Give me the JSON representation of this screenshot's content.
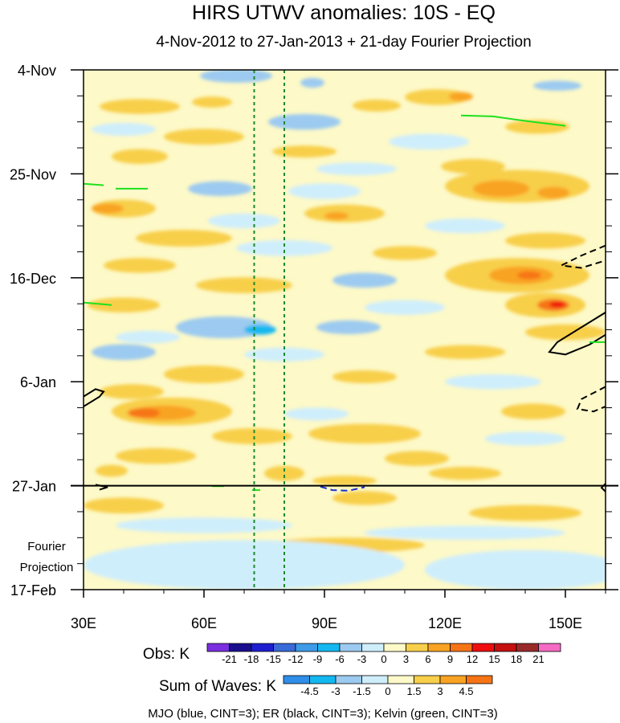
{
  "chart_data": {
    "type": "heatmap",
    "title": "HIRS UTWV anomalies: 10S - EQ",
    "subtitle": "4-Nov-2012 to 27-Jan-2013 + 21-day Fourier Projection",
    "x_axis": {
      "range": [
        30,
        160
      ],
      "ticks": [
        {
          "value": 30,
          "label": "30E"
        },
        {
          "value": 60,
          "label": "60E"
        },
        {
          "value": 90,
          "label": "90E"
        },
        {
          "value": 120,
          "label": "120E"
        },
        {
          "value": 150,
          "label": "150E"
        }
      ]
    },
    "y_axis": {
      "range_days": [
        0,
        105
      ],
      "ticks": [
        {
          "day": 0,
          "label": "4-Nov"
        },
        {
          "day": 21,
          "label": "25-Nov"
        },
        {
          "day": 42,
          "label": "16-Dec"
        },
        {
          "day": 63,
          "label": "6-Jan"
        },
        {
          "day": 84,
          "label": "27-Jan"
        },
        {
          "day": 105,
          "label": "17-Feb"
        }
      ]
    },
    "projection_label": [
      "Fourier",
      "Projection"
    ],
    "projection_start_day": 84,
    "reference_longitudes": [
      72.5,
      80
    ],
    "obs_colorbar": {
      "label": "Obs: K",
      "levels": [
        "-21",
        "-18",
        "-15",
        "-12",
        "-9",
        "-6",
        "-3",
        "0",
        "3",
        "6",
        "9",
        "12",
        "15",
        "18",
        "21"
      ],
      "colors": [
        "#7a2fe0",
        "#1b0f8f",
        "#1e1ed0",
        "#3a6ad8",
        "#3d9be8",
        "#14b8f0",
        "#9ccaf0",
        "#cfeefc",
        "#fdf9c8",
        "#f8cf4a",
        "#f9a324",
        "#f77416",
        "#ef0e0e",
        "#c41010",
        "#9a2a2a",
        "#f56bc4"
      ]
    },
    "waves_colorbar": {
      "label": "Sum of Waves: K",
      "levels": [
        "-4.5",
        "-3",
        "-1.5",
        "0",
        "1.5",
        "3",
        "4.5"
      ],
      "colors": [
        "#2f8ee8",
        "#14b8f0",
        "#9ccaf0",
        "#cfeefc",
        "#fdf9c8",
        "#f8cf4a",
        "#f9a324",
        "#f77416"
      ]
    },
    "legend": "MJO (blue, CINT=3); ER (black, CINT=3); Kelvin (green, CINT=3)",
    "patches": [
      {
        "lon": 68,
        "day": 1.2,
        "rx": 9,
        "ry": 1.4,
        "v": -6
      },
      {
        "lon": 87,
        "day": 2.6,
        "rx": 3,
        "ry": 1.0,
        "v": -6
      },
      {
        "lon": 118,
        "day": 5.5,
        "rx": 8,
        "ry": 1.6,
        "v": 4
      },
      {
        "lon": 124,
        "day": 5.4,
        "rx": 3,
        "ry": 0.9,
        "v": 7
      },
      {
        "lon": 44,
        "day": 7.4,
        "rx": 10,
        "ry": 1.5,
        "v": 3
      },
      {
        "lon": 62,
        "day": 6.5,
        "rx": 5,
        "ry": 1.1,
        "v": 4
      },
      {
        "lon": 103,
        "day": 7.2,
        "rx": 6,
        "ry": 1.2,
        "v": 3
      },
      {
        "lon": 148,
        "day": 3.2,
        "rx": 6,
        "ry": 1.0,
        "v": -4
      },
      {
        "lon": 85,
        "day": 10.5,
        "rx": 9,
        "ry": 1.6,
        "v": -4
      },
      {
        "lon": 40,
        "day": 12.0,
        "rx": 8,
        "ry": 1.3,
        "v": -3
      },
      {
        "lon": 60,
        "day": 13.5,
        "rx": 10,
        "ry": 1.6,
        "v": 3
      },
      {
        "lon": 143,
        "day": 11.5,
        "rx": 8,
        "ry": 1.4,
        "v": 3
      },
      {
        "lon": 116,
        "day": 14.5,
        "rx": 10,
        "ry": 1.6,
        "v": -3
      },
      {
        "lon": 85,
        "day": 16.5,
        "rx": 8,
        "ry": 1.2,
        "v": 3
      },
      {
        "lon": 44,
        "day": 17.5,
        "rx": 7,
        "ry": 1.5,
        "v": 3
      },
      {
        "lon": 127,
        "day": 19.5,
        "rx": 8,
        "ry": 1.5,
        "v": 3
      },
      {
        "lon": 98,
        "day": 20.0,
        "rx": 10,
        "ry": 1.3,
        "v": -3
      },
      {
        "lon": 138,
        "day": 23.5,
        "rx": 18,
        "ry": 3.3,
        "v": 4
      },
      {
        "lon": 134,
        "day": 24.0,
        "rx": 7,
        "ry": 1.7,
        "v": 7
      },
      {
        "lon": 147,
        "day": 24.8,
        "rx": 4,
        "ry": 1.2,
        "v": 7
      },
      {
        "lon": 64,
        "day": 24.0,
        "rx": 8,
        "ry": 1.5,
        "v": -4
      },
      {
        "lon": 90,
        "day": 24.5,
        "rx": 9,
        "ry": 1.6,
        "v": -3
      },
      {
        "lon": 40,
        "day": 28.0,
        "rx": 8,
        "ry": 1.8,
        "v": 4
      },
      {
        "lon": 36,
        "day": 28.0,
        "rx": 4,
        "ry": 1.0,
        "v": 8
      },
      {
        "lon": 95,
        "day": 29.0,
        "rx": 10,
        "ry": 1.8,
        "v": 4
      },
      {
        "lon": 93,
        "day": 29.5,
        "rx": 3,
        "ry": 0.8,
        "v": 7
      },
      {
        "lon": 70,
        "day": 30.5,
        "rx": 9,
        "ry": 1.5,
        "v": -3
      },
      {
        "lon": 125,
        "day": 31.5,
        "rx": 10,
        "ry": 1.5,
        "v": -3
      },
      {
        "lon": 55,
        "day": 34.0,
        "rx": 12,
        "ry": 1.7,
        "v": 3
      },
      {
        "lon": 145,
        "day": 34.5,
        "rx": 10,
        "ry": 1.6,
        "v": 3
      },
      {
        "lon": 80,
        "day": 36.0,
        "rx": 12,
        "ry": 1.6,
        "v": -3
      },
      {
        "lon": 110,
        "day": 37.0,
        "rx": 8,
        "ry": 1.4,
        "v": 3
      },
      {
        "lon": 44,
        "day": 39.5,
        "rx": 9,
        "ry": 1.5,
        "v": 3
      },
      {
        "lon": 138,
        "day": 41.5,
        "rx": 18,
        "ry": 3.5,
        "v": 4
      },
      {
        "lon": 139,
        "day": 41.5,
        "rx": 8,
        "ry": 1.8,
        "v": 7
      },
      {
        "lon": 141,
        "day": 41.5,
        "rx": 3,
        "ry": 0.8,
        "v": 10
      },
      {
        "lon": 100,
        "day": 42.5,
        "rx": 8,
        "ry": 1.5,
        "v": -4
      },
      {
        "lon": 70,
        "day": 43.5,
        "rx": 12,
        "ry": 1.6,
        "v": 3
      },
      {
        "lon": 145,
        "day": 47.5,
        "rx": 10,
        "ry": 2.5,
        "v": 5
      },
      {
        "lon": 147,
        "day": 47.5,
        "rx": 4,
        "ry": 1.2,
        "v": 10
      },
      {
        "lon": 148,
        "day": 47.4,
        "rx": 2,
        "ry": 0.6,
        "v": 13
      },
      {
        "lon": 40,
        "day": 47.5,
        "rx": 9,
        "ry": 1.5,
        "v": 3
      },
      {
        "lon": 110,
        "day": 48.0,
        "rx": 10,
        "ry": 1.5,
        "v": -3
      },
      {
        "lon": 65,
        "day": 52.0,
        "rx": 12,
        "ry": 2.2,
        "v": -4
      },
      {
        "lon": 74,
        "day": 52.5,
        "rx": 4,
        "ry": 1.0,
        "v": -7
      },
      {
        "lon": 96,
        "day": 52.0,
        "rx": 8,
        "ry": 1.4,
        "v": -4
      },
      {
        "lon": 46,
        "day": 54.0,
        "rx": 8,
        "ry": 1.3,
        "v": -3
      },
      {
        "lon": 150,
        "day": 53.0,
        "rx": 10,
        "ry": 1.6,
        "v": 3
      },
      {
        "lon": 40,
        "day": 57.0,
        "rx": 8,
        "ry": 1.6,
        "v": -4
      },
      {
        "lon": 80,
        "day": 57.5,
        "rx": 10,
        "ry": 1.4,
        "v": -3
      },
      {
        "lon": 125,
        "day": 57.0,
        "rx": 10,
        "ry": 1.4,
        "v": 3
      },
      {
        "lon": 60,
        "day": 61.5,
        "rx": 10,
        "ry": 1.8,
        "v": 3
      },
      {
        "lon": 100,
        "day": 62.0,
        "rx": 8,
        "ry": 1.3,
        "v": 3
      },
      {
        "lon": 132,
        "day": 63.0,
        "rx": 12,
        "ry": 1.5,
        "v": -3
      },
      {
        "lon": 42,
        "day": 65.0,
        "rx": 8,
        "ry": 1.5,
        "v": 3
      },
      {
        "lon": 52,
        "day": 69.0,
        "rx": 15,
        "ry": 2.8,
        "v": 4
      },
      {
        "lon": 50,
        "day": 69.3,
        "rx": 8,
        "ry": 1.5,
        "v": 7
      },
      {
        "lon": 45,
        "day": 69.3,
        "rx": 4,
        "ry": 1.0,
        "v": 10
      },
      {
        "lon": 88,
        "day": 69.5,
        "rx": 8,
        "ry": 1.3,
        "v": -3
      },
      {
        "lon": 142,
        "day": 69.0,
        "rx": 8,
        "ry": 1.6,
        "v": 3
      },
      {
        "lon": 100,
        "day": 73.5,
        "rx": 14,
        "ry": 2.0,
        "v": 4
      },
      {
        "lon": 72,
        "day": 74.0,
        "rx": 10,
        "ry": 1.6,
        "v": 3
      },
      {
        "lon": 140,
        "day": 74.5,
        "rx": 10,
        "ry": 1.4,
        "v": -3
      },
      {
        "lon": 48,
        "day": 78.0,
        "rx": 10,
        "ry": 1.6,
        "v": 3
      },
      {
        "lon": 113,
        "day": 78.5,
        "rx": 8,
        "ry": 1.5,
        "v": 3
      },
      {
        "lon": 80,
        "day": 81.5,
        "rx": 5,
        "ry": 1.5,
        "v": 4
      },
      {
        "lon": 37,
        "day": 81.0,
        "rx": 4,
        "ry": 1.2,
        "v": 4
      },
      {
        "lon": 125,
        "day": 81.5,
        "rx": 9,
        "ry": 1.3,
        "v": 3
      },
      {
        "lon": 95,
        "day": 83.0,
        "rx": 8,
        "ry": 1.0,
        "v": 3
      }
    ],
    "projection_bands": [
      {
        "lon": 40,
        "day": 88.0,
        "rx": 10,
        "ry": 1.6,
        "v": 1.6
      },
      {
        "lon": 100,
        "day": 86.5,
        "rx": 8,
        "ry": 1.4,
        "v": 1.6
      },
      {
        "lon": 140,
        "day": 89.5,
        "rx": 14,
        "ry": 1.6,
        "v": 1.6
      },
      {
        "lon": 60,
        "day": 92.0,
        "rx": 22,
        "ry": 1.6,
        "v": -0.6
      },
      {
        "lon": 125,
        "day": 93.5,
        "rx": 25,
        "ry": 1.4,
        "v": -0.6
      },
      {
        "lon": 95,
        "day": 96.0,
        "rx": 20,
        "ry": 1.5,
        "v": 1.6
      },
      {
        "lon": 70,
        "day": 100.0,
        "rx": 40,
        "ry": 5.0,
        "v": -0.6
      },
      {
        "lon": 140,
        "day": 101.0,
        "rx": 25,
        "ry": 4.0,
        "v": -0.6
      }
    ],
    "wave_contours": [
      {
        "name": "er-contour",
        "color": "#000000",
        "dashed": false,
        "points": [
          [
            30,
            68.0
          ],
          [
            34,
            66.0
          ],
          [
            35,
            65.0
          ],
          [
            33,
            64.5
          ],
          [
            30,
            66.0
          ]
        ]
      },
      {
        "name": "er-contour",
        "color": "#000000",
        "dashed": false,
        "points": [
          [
            160,
            49.0
          ],
          [
            154,
            52.0
          ],
          [
            148,
            55.0
          ],
          [
            146,
            57.0
          ],
          [
            150,
            57.5
          ],
          [
            156,
            55.5
          ],
          [
            160,
            53.5
          ]
        ]
      },
      {
        "name": "er-contour",
        "color": "#000000",
        "dashed": true,
        "points": [
          [
            160,
            35.5
          ],
          [
            154,
            37.5
          ],
          [
            149,
            39.5
          ],
          [
            154,
            40.0
          ],
          [
            160,
            38.5
          ]
        ]
      },
      {
        "name": "er-contour",
        "color": "#000000",
        "dashed": true,
        "points": [
          [
            160,
            64.0
          ],
          [
            154,
            66.5
          ],
          [
            153,
            68.5
          ],
          [
            157,
            69.0
          ],
          [
            160,
            68.0
          ]
        ]
      },
      {
        "name": "er-contour",
        "color": "#000000",
        "dashed": false,
        "points": [
          [
            33,
            83.8
          ],
          [
            36,
            84.3
          ],
          [
            34,
            84.8
          ]
        ]
      },
      {
        "name": "er-contour",
        "color": "#000000",
        "dashed": false,
        "points": [
          [
            160,
            83.6
          ],
          [
            159,
            84.4
          ],
          [
            160,
            85.2
          ]
        ]
      },
      {
        "name": "mjo-contour",
        "color": "#1a2fd0",
        "dashed": true,
        "points": [
          [
            89,
            84.2
          ],
          [
            92,
            84.9
          ],
          [
            96,
            85.0
          ],
          [
            100,
            84.3
          ]
        ]
      },
      {
        "name": "kelvin-contour",
        "color": "#1ee01e",
        "dashed": false,
        "points": [
          [
            124,
            9.2
          ],
          [
            132,
            9.4
          ],
          [
            140,
            10.3
          ],
          [
            150,
            11.3
          ]
        ]
      },
      {
        "name": "kelvin-contour",
        "color": "#1ee01e",
        "dashed": false,
        "points": [
          [
            30,
            23.0
          ],
          [
            35,
            23.3
          ]
        ]
      },
      {
        "name": "kelvin-contour",
        "color": "#1ee01e",
        "dashed": false,
        "points": [
          [
            38,
            24.0
          ],
          [
            46,
            24.0
          ]
        ]
      },
      {
        "name": "kelvin-contour",
        "color": "#1ee01e",
        "dashed": false,
        "points": [
          [
            30,
            47.0
          ],
          [
            37,
            47.5
          ]
        ]
      },
      {
        "name": "kelvin-contour",
        "color": "#1ee01e",
        "dashed": false,
        "points": [
          [
            156,
            55.0
          ],
          [
            160,
            55.0
          ]
        ]
      },
      {
        "name": "kelvin-contour",
        "color": "#1ee01e",
        "dashed": false,
        "points": [
          [
            62,
            84.1
          ],
          [
            65,
            84.1
          ]
        ]
      },
      {
        "name": "kelvin-contour",
        "color": "#1ee01e",
        "dashed": false,
        "points": [
          [
            72,
            84.9
          ],
          [
            74,
            84.9
          ]
        ]
      }
    ]
  }
}
